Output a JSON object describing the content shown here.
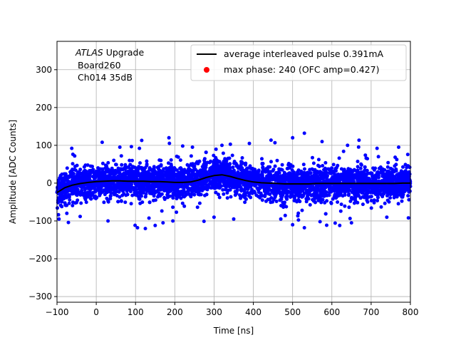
{
  "chart_data": {
    "type": "scatter",
    "title": "",
    "xlabel": "Time [ns]",
    "ylabel": "Amplitude [ADC Counts]",
    "xlim": [
      -100,
      800
    ],
    "ylim": [
      -315,
      375
    ],
    "xticks": [
      -100,
      0,
      100,
      200,
      300,
      400,
      500,
      600,
      700,
      800
    ],
    "yticks": [
      -300,
      -200,
      -100,
      0,
      100,
      200,
      300
    ],
    "grid": true,
    "legend_position": "top-right",
    "annotation": {
      "line1_italic": "ATLAS",
      "line1_rest": " Upgrade",
      "line2": "Board260",
      "line3": "Ch014 35dB"
    },
    "series": [
      {
        "name": "average interleaved pulse 0.391mA",
        "kind": "line",
        "color": "#000000",
        "x": [
          -100,
          -80,
          -60,
          -40,
          -20,
          0,
          20,
          40,
          60,
          80,
          100,
          120,
          140,
          160,
          180,
          200,
          220,
          240,
          260,
          280,
          300,
          320,
          340,
          360,
          380,
          400,
          420,
          440,
          460,
          480,
          500,
          520,
          540,
          560,
          580,
          600,
          620,
          640,
          660,
          680,
          700,
          720,
          740,
          760,
          780,
          800
        ],
        "y": [
          -25,
          -12,
          -5,
          -1,
          2,
          4,
          5,
          6,
          6,
          5,
          5,
          5,
          4,
          4,
          3,
          2,
          2,
          3,
          8,
          15,
          20,
          22,
          18,
          12,
          7,
          3,
          1,
          0,
          -1,
          -2,
          -2,
          -2,
          -2,
          -1,
          -1,
          -1,
          -1,
          -1,
          -1,
          -1,
          -1,
          -1,
          -1,
          -1,
          0,
          0
        ]
      },
      {
        "name": "max phase: 240 (OFC amp=0.427)",
        "kind": "scatter",
        "color": "#ff0000"
      },
      {
        "name": "",
        "kind": "scatter-cloud",
        "color": "#0000ff",
        "x_range": [
          -100,
          800
        ],
        "typical_spread": 35,
        "outlier_spread": 115,
        "outliers": [
          [
            15,
            108
          ],
          [
            60,
            95
          ],
          [
            110,
            92
          ],
          [
            185,
            120
          ],
          [
            220,
            98
          ],
          [
            245,
            95
          ],
          [
            320,
            100
          ],
          [
            390,
            105
          ],
          [
            455,
            107
          ],
          [
            500,
            120
          ],
          [
            530,
            132
          ],
          [
            575,
            110
          ],
          [
            640,
            100
          ],
          [
            715,
            92
          ],
          [
            770,
            95
          ],
          [
            -95,
            -95
          ],
          [
            -75,
            -80
          ],
          [
            30,
            -100
          ],
          [
            105,
            -118
          ],
          [
            125,
            -120
          ],
          [
            150,
            -112
          ],
          [
            170,
            -105
          ],
          [
            195,
            -100
          ],
          [
            300,
            -90
          ],
          [
            350,
            -95
          ],
          [
            470,
            -95
          ],
          [
            500,
            -110
          ],
          [
            530,
            -118
          ],
          [
            570,
            -102
          ],
          [
            620,
            -112
          ],
          [
            650,
            -105
          ],
          [
            740,
            -90
          ],
          [
            795,
            -92
          ]
        ]
      }
    ]
  }
}
